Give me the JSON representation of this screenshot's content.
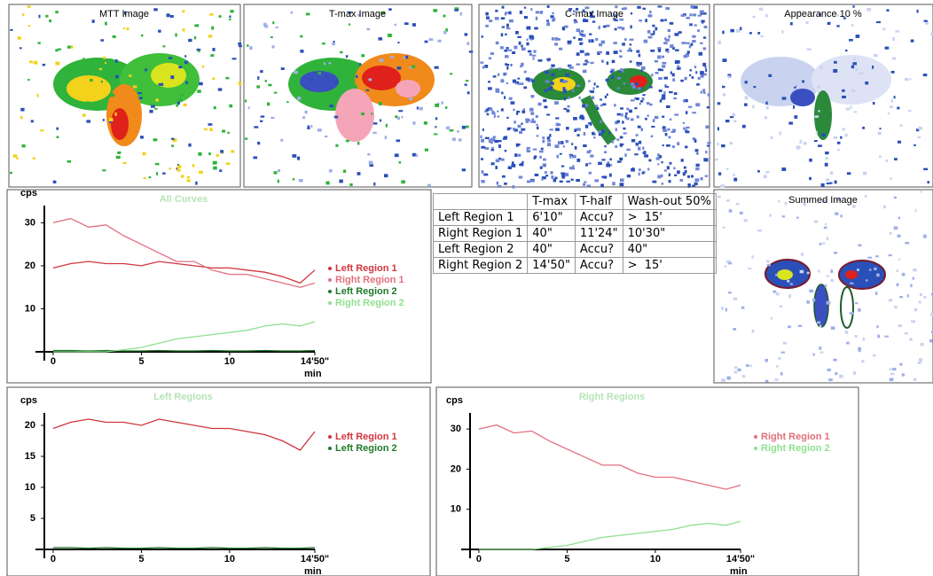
{
  "images": [
    {
      "title": "MTT Image"
    },
    {
      "title": "T-max Image"
    },
    {
      "title": "C-max Image"
    },
    {
      "title": "Appearance 10 %"
    },
    {
      "title": "Summed Image"
    }
  ],
  "table": {
    "header": [
      "T-max",
      "T-half",
      "Wash-out 50%"
    ],
    "rows": [
      {
        "label": "Left Region 1",
        "cells": [
          "6'10\"",
          "Accu?",
          ">  15'"
        ]
      },
      {
        "label": "Right Region 1",
        "cells": [
          "40\"",
          "11'24\"",
          "10'30\""
        ]
      },
      {
        "label": "Left Region 2",
        "cells": [
          "40\"",
          "Accu?",
          "40\""
        ]
      },
      {
        "label": "Right Region 2",
        "cells": [
          "14'50\"",
          "Accu?",
          ">  15'"
        ]
      }
    ]
  },
  "chart_data": [
    {
      "type": "line",
      "title": "All Curves",
      "y_label": "cps",
      "x_label": "min",
      "x": [
        0,
        1,
        2,
        3,
        4,
        5,
        6,
        7,
        8,
        9,
        10,
        11,
        12,
        13,
        14,
        14.83
      ],
      "xlim": [
        -0.5,
        14.83
      ],
      "xticks": [
        0,
        5,
        10,
        {
          "value": 14.83,
          "label": "14'50\""
        }
      ],
      "ylim": [
        0,
        34
      ],
      "yticks": [
        10,
        20,
        30
      ],
      "series": [
        {
          "name": "Left Region 1",
          "color": "#d0353f",
          "values": [
            19.5,
            20.5,
            21,
            20.5,
            20.5,
            20,
            21,
            20.5,
            20,
            19.5,
            19.5,
            19,
            18.5,
            17.5,
            16,
            19
          ]
        },
        {
          "name": "Right Region 1",
          "color": "#e2707e",
          "values": [
            30,
            31,
            29,
            29.5,
            27,
            25,
            23,
            21,
            21,
            19,
            18,
            18,
            17,
            16,
            15,
            16
          ]
        },
        {
          "name": "Left Region 2",
          "color": "#1f7a2a",
          "values": [
            0.3,
            0.3,
            0.2,
            0.3,
            0.2,
            0.2,
            0.3,
            0.2,
            0.2,
            0.3,
            0.2,
            0.2,
            0.3,
            0.2,
            0.2,
            0.3
          ]
        },
        {
          "name": "Right Region 2",
          "color": "#8fe08f",
          "values": [
            0,
            0,
            0,
            0,
            0.5,
            1,
            2,
            3,
            3.5,
            4,
            4.5,
            5,
            6,
            6.5,
            6,
            7
          ]
        }
      ]
    },
    {
      "type": "line",
      "title": "Left Regions",
      "y_label": "cps",
      "x_label": "min",
      "x": [
        0,
        1,
        2,
        3,
        4,
        5,
        6,
        7,
        8,
        9,
        10,
        11,
        12,
        13,
        14,
        14.83
      ],
      "xlim": [
        -0.5,
        14.83
      ],
      "xticks": [
        0,
        5,
        10,
        {
          "value": 14.83,
          "label": "14'50\""
        }
      ],
      "ylim": [
        0,
        22
      ],
      "yticks": [
        5,
        10,
        15,
        20
      ],
      "series": [
        {
          "name": "Left Region 1",
          "color": "#d0353f",
          "values": [
            19.5,
            20.5,
            21,
            20.5,
            20.5,
            20,
            21,
            20.5,
            20,
            19.5,
            19.5,
            19,
            18.5,
            17.5,
            16,
            19
          ]
        },
        {
          "name": "Left Region 2",
          "color": "#1f7a2a",
          "values": [
            0.3,
            0.3,
            0.2,
            0.3,
            0.2,
            0.2,
            0.3,
            0.2,
            0.2,
            0.3,
            0.2,
            0.2,
            0.3,
            0.2,
            0.2,
            0.3
          ]
        }
      ]
    },
    {
      "type": "line",
      "title": "Right Regions",
      "y_label": "cps",
      "x_label": "min",
      "x": [
        0,
        1,
        2,
        3,
        4,
        5,
        6,
        7,
        8,
        9,
        10,
        11,
        12,
        13,
        14,
        14.83
      ],
      "xlim": [
        -0.5,
        14.83
      ],
      "xticks": [
        0,
        5,
        10,
        {
          "value": 14.83,
          "label": "14'50\""
        }
      ],
      "ylim": [
        0,
        34
      ],
      "yticks": [
        10,
        20,
        30
      ],
      "series": [
        {
          "name": "Right Region 1",
          "color": "#e2707e",
          "values": [
            30,
            31,
            29,
            29.5,
            27,
            25,
            23,
            21,
            21,
            19,
            18,
            18,
            17,
            16,
            15,
            16
          ]
        },
        {
          "name": "Right Region 2",
          "color": "#8fe08f",
          "values": [
            0,
            0,
            0,
            0,
            0.5,
            1,
            2,
            3,
            3.5,
            4,
            4.5,
            5,
            6,
            6.5,
            6,
            7
          ]
        }
      ]
    }
  ]
}
